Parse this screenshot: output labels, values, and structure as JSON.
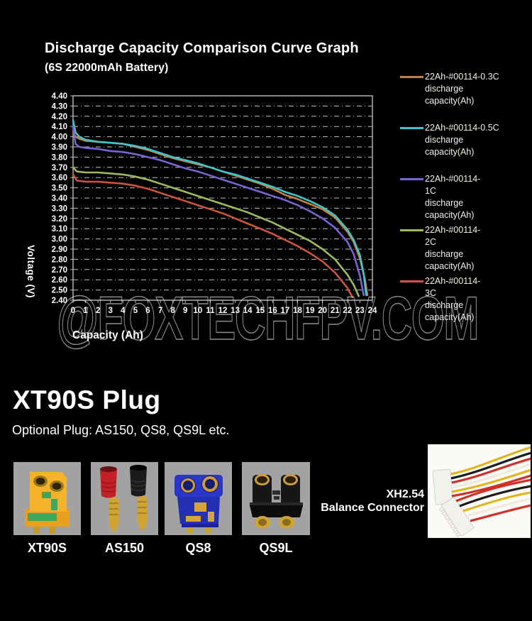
{
  "chart_data": {
    "type": "line",
    "title": "Discharge Capacity Comparison Curve Graph",
    "subtitle": "(6S 22000mAh Battery)",
    "xlabel": "Capacity (Ah)",
    "ylabel": "Voltage (V)",
    "xlim": [
      0,
      24
    ],
    "ylim": [
      2.4,
      4.4
    ],
    "x_tick_step": 1,
    "y_tick_step": 0.1,
    "grid": "horizontal dash-dot gridlines every 0.10 V",
    "legend_position": "right",
    "background": "#000000",
    "axis_text_color": "#ffffff",
    "series": [
      {
        "name": "22Ah-#00114-0.3C discharge capacity(Ah)",
        "label_lines": [
          "22Ah-#00114-0.3C",
          "discharge",
          "capacity(Ah)"
        ],
        "color": "#c0843e",
        "points": [
          [
            0,
            4.05
          ],
          [
            0.2,
            4.0
          ],
          [
            0.5,
            3.98
          ],
          [
            1,
            3.96
          ],
          [
            2,
            3.95
          ],
          [
            3,
            3.94
          ],
          [
            4,
            3.93
          ],
          [
            5,
            3.9
          ],
          [
            6,
            3.87
          ],
          [
            7,
            3.83
          ],
          [
            8,
            3.79
          ],
          [
            9,
            3.76
          ],
          [
            10,
            3.73
          ],
          [
            11,
            3.7
          ],
          [
            12,
            3.66
          ],
          [
            13,
            3.62
          ],
          [
            14,
            3.58
          ],
          [
            15,
            3.54
          ],
          [
            16,
            3.49
          ],
          [
            17,
            3.43
          ],
          [
            18,
            3.39
          ],
          [
            19,
            3.34
          ],
          [
            20,
            3.29
          ],
          [
            21,
            3.21
          ],
          [
            22,
            3.07
          ],
          [
            22.5,
            2.97
          ],
          [
            23,
            2.81
          ],
          [
            23.4,
            2.6
          ],
          [
            23.6,
            2.45
          ]
        ]
      },
      {
        "name": "22Ah-#00114-0.5C discharge capacity(Ah)",
        "label_lines": [
          "22Ah-#00114-0.5C",
          "discharge",
          "capacity(Ah)"
        ],
        "color": "#3fc4cc",
        "points": [
          [
            0,
            4.16
          ],
          [
            0.2,
            4.04
          ],
          [
            0.5,
            4.0
          ],
          [
            1,
            3.97
          ],
          [
            2,
            3.95
          ],
          [
            3,
            3.94
          ],
          [
            4,
            3.93
          ],
          [
            5,
            3.91
          ],
          [
            6,
            3.88
          ],
          [
            7,
            3.84
          ],
          [
            8,
            3.8
          ],
          [
            9,
            3.77
          ],
          [
            10,
            3.74
          ],
          [
            11,
            3.7
          ],
          [
            12,
            3.66
          ],
          [
            13,
            3.63
          ],
          [
            14,
            3.59
          ],
          [
            15,
            3.55
          ],
          [
            16,
            3.51
          ],
          [
            17,
            3.46
          ],
          [
            18,
            3.42
          ],
          [
            19,
            3.37
          ],
          [
            20,
            3.31
          ],
          [
            21,
            3.23
          ],
          [
            22,
            3.09
          ],
          [
            22.5,
            2.99
          ],
          [
            23,
            2.84
          ],
          [
            23.3,
            2.66
          ],
          [
            23.5,
            2.45
          ]
        ]
      },
      {
        "name": "22Ah-#00114-1C discharge capacity(Ah)",
        "label_lines": [
          "22Ah-#00114-",
          "1C",
          "discharge",
          "capacity(Ah)"
        ],
        "color": "#7a63d2",
        "points": [
          [
            0,
            4.1
          ],
          [
            0.2,
            3.93
          ],
          [
            0.5,
            3.9
          ],
          [
            1,
            3.89
          ],
          [
            2,
            3.88
          ],
          [
            3,
            3.86
          ],
          [
            4,
            3.85
          ],
          [
            5,
            3.83
          ],
          [
            6,
            3.8
          ],
          [
            7,
            3.77
          ],
          [
            8,
            3.73
          ],
          [
            9,
            3.69
          ],
          [
            10,
            3.66
          ],
          [
            11,
            3.62
          ],
          [
            12,
            3.58
          ],
          [
            13,
            3.54
          ],
          [
            14,
            3.5
          ],
          [
            15,
            3.46
          ],
          [
            16,
            3.42
          ],
          [
            17,
            3.38
          ],
          [
            18,
            3.33
          ],
          [
            19,
            3.27
          ],
          [
            20,
            3.2
          ],
          [
            21,
            3.11
          ],
          [
            22,
            2.97
          ],
          [
            22.5,
            2.85
          ],
          [
            23,
            2.64
          ],
          [
            23.3,
            2.45
          ]
        ]
      },
      {
        "name": "22Ah-#00114-2C discharge capacity(Ah)",
        "label_lines": [
          "22Ah-#00114-",
          "2C",
          "discharge",
          "capacity(Ah)"
        ],
        "color": "#9cba5e",
        "points": [
          [
            0,
            3.7
          ],
          [
            0.3,
            3.66
          ],
          [
            1,
            3.65
          ],
          [
            2,
            3.65
          ],
          [
            3,
            3.64
          ],
          [
            4,
            3.63
          ],
          [
            5,
            3.61
          ],
          [
            6,
            3.58
          ],
          [
            7,
            3.54
          ],
          [
            8,
            3.5
          ],
          [
            9,
            3.46
          ],
          [
            10,
            3.42
          ],
          [
            11,
            3.38
          ],
          [
            12,
            3.34
          ],
          [
            13,
            3.3
          ],
          [
            14,
            3.26
          ],
          [
            15,
            3.21
          ],
          [
            16,
            3.16
          ],
          [
            17,
            3.1
          ],
          [
            18,
            3.04
          ],
          [
            19,
            2.98
          ],
          [
            20,
            2.9
          ],
          [
            21,
            2.8
          ],
          [
            22,
            2.65
          ],
          [
            22.5,
            2.55
          ],
          [
            22.9,
            2.44
          ]
        ]
      },
      {
        "name": "22Ah-#00114-3C discharge capacity(Ah)",
        "label_lines": [
          "22Ah-#00114-",
          "3C",
          "discharge",
          "capacity(Ah)"
        ],
        "color": "#cd5540",
        "points": [
          [
            0,
            3.63
          ],
          [
            0.3,
            3.57
          ],
          [
            1,
            3.56
          ],
          [
            2,
            3.56
          ],
          [
            3,
            3.55
          ],
          [
            4,
            3.54
          ],
          [
            5,
            3.52
          ],
          [
            6,
            3.49
          ],
          [
            7,
            3.45
          ],
          [
            8,
            3.41
          ],
          [
            9,
            3.37
          ],
          [
            10,
            3.33
          ],
          [
            11,
            3.29
          ],
          [
            12,
            3.25
          ],
          [
            13,
            3.2
          ],
          [
            14,
            3.15
          ],
          [
            15,
            3.1
          ],
          [
            16,
            3.05
          ],
          [
            17,
            2.99
          ],
          [
            18,
            2.93
          ],
          [
            19,
            2.86
          ],
          [
            20,
            2.78
          ],
          [
            21,
            2.67
          ],
          [
            22,
            2.52
          ],
          [
            22.4,
            2.43
          ]
        ]
      }
    ]
  },
  "watermark": "@FOXTECHFPV.COM",
  "plug_section": {
    "heading": "XT90S Plug",
    "subheading": "Optional Plug: AS150, QS8, QS9L etc.",
    "products": [
      {
        "label": "XT90S"
      },
      {
        "label": "AS150"
      },
      {
        "label": "QS8"
      },
      {
        "label": "QS9L"
      }
    ],
    "balance_connector": {
      "line1": "XH2.54",
      "line2": "Balance Connector"
    }
  }
}
